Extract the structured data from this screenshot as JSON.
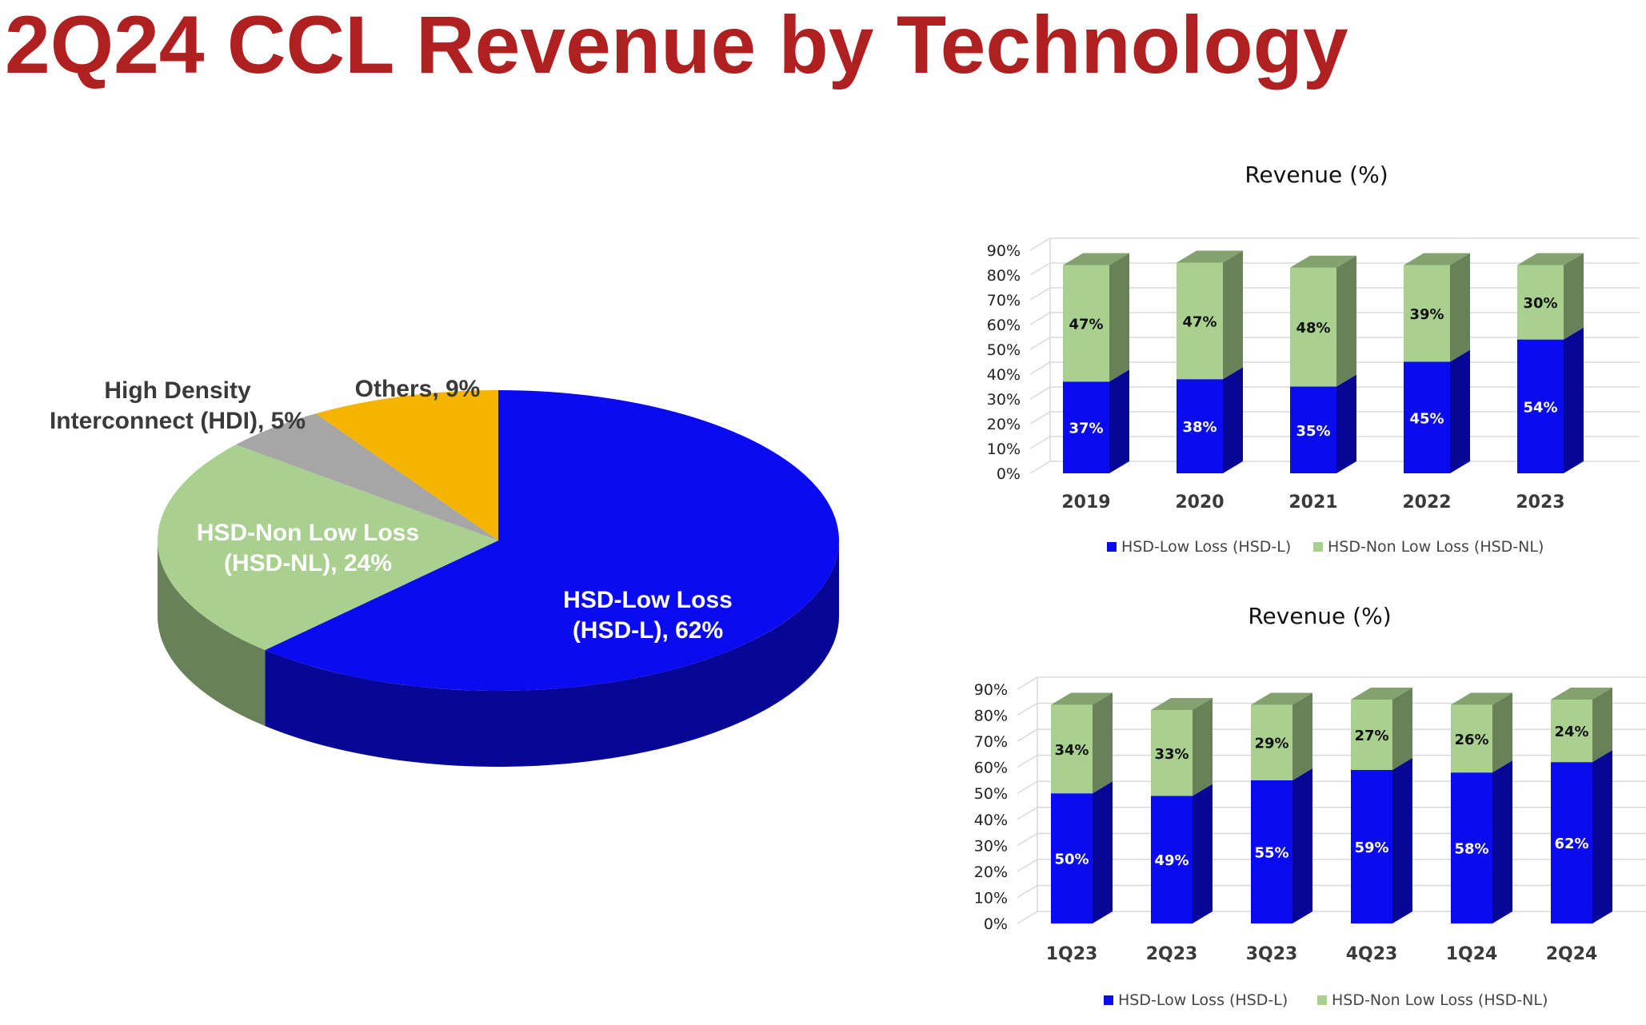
{
  "title": "2Q24 CCL Revenue by Technology",
  "colors": {
    "title": "#b12020",
    "hsd_l": "#0b0bf0",
    "hsd_nl": "#a9d08e",
    "hdi": "#a6a6a6",
    "others": "#f5b400"
  },
  "chart_data": [
    {
      "type": "pie",
      "title": "",
      "slices": [
        {
          "label_lines": [
            "HSD-Low Loss",
            "(HSD-L), 62%"
          ],
          "value": 62
        },
        {
          "label_lines": [
            "HSD-Non Low Loss",
            "(HSD-NL), 24%"
          ],
          "value": 24
        },
        {
          "label_lines": [
            "High Density",
            "Interconnect (HDI), 5%"
          ],
          "value": 5
        },
        {
          "label_lines": [
            "Others, 9%"
          ],
          "value": 9
        }
      ]
    },
    {
      "type": "bar",
      "stacked": true,
      "title": "Revenue (%)",
      "categories": [
        "2019",
        "2020",
        "2021",
        "2022",
        "2023"
      ],
      "series": [
        {
          "name": "HSD-Low Loss (HSD-L)",
          "values": [
            37,
            38,
            35,
            45,
            54
          ],
          "labels": [
            "37%",
            "38%",
            "35%",
            "45%",
            "54%"
          ]
        },
        {
          "name": "HSD-Non Low Loss (HSD-NL)",
          "values": [
            47,
            47,
            48,
            39,
            30
          ],
          "labels": [
            "47%",
            "47%",
            "48%",
            "39%",
            "30%"
          ]
        }
      ],
      "ylim": [
        0,
        90
      ],
      "yticks": [
        "0%",
        "10%",
        "20%",
        "30%",
        "40%",
        "50%",
        "60%",
        "70%",
        "80%",
        "90%"
      ],
      "grid": true,
      "legend": "bottom"
    },
    {
      "type": "bar",
      "stacked": true,
      "title": "Revenue (%)",
      "categories": [
        "1Q23",
        "2Q23",
        "3Q23",
        "4Q23",
        "1Q24",
        "2Q24"
      ],
      "series": [
        {
          "name": "HSD-Low Loss (HSD-L)",
          "values": [
            50,
            49,
            55,
            59,
            58,
            62
          ],
          "labels": [
            "50%",
            "49%",
            "55%",
            "59%",
            "58%",
            "62%"
          ]
        },
        {
          "name": "HSD-Non Low Loss (HSD-NL)",
          "values": [
            34,
            33,
            29,
            27,
            26,
            24
          ],
          "labels": [
            "34%",
            "33%",
            "29%",
            "27%",
            "26%",
            "24%"
          ]
        }
      ],
      "ylim": [
        0,
        90
      ],
      "yticks": [
        "0%",
        "10%",
        "20%",
        "30%",
        "40%",
        "50%",
        "60%",
        "70%",
        "80%",
        "90%"
      ],
      "grid": true,
      "legend": "bottom"
    }
  ]
}
